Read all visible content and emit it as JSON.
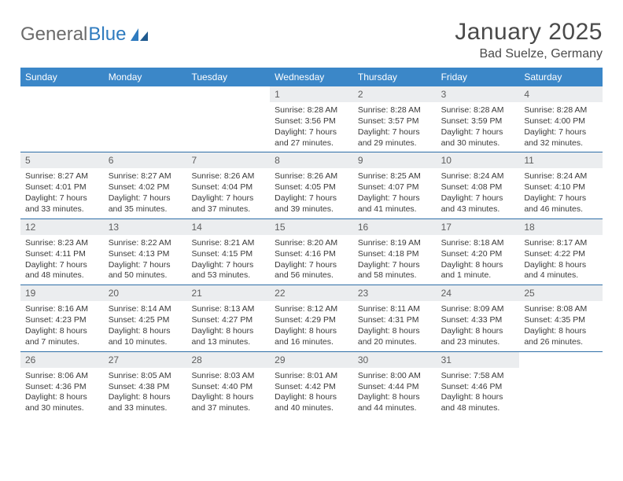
{
  "brand": {
    "part1": "General",
    "part2": "Blue"
  },
  "title": "January 2025",
  "location": "Bad Suelze, Germany",
  "colors": {
    "header_bg": "#3b87c8",
    "header_text": "#ffffff",
    "daynum_bg": "#ebedef",
    "row_border": "#2f6fa8",
    "body_text": "#3a3a3a",
    "title_text": "#4a4a4a",
    "logo_gray": "#6b6b6b",
    "logo_blue": "#2f7bbf"
  },
  "weekdays": [
    "Sunday",
    "Monday",
    "Tuesday",
    "Wednesday",
    "Thursday",
    "Friday",
    "Saturday"
  ],
  "weeks": [
    [
      {
        "n": "",
        "lines": [
          "",
          "",
          "",
          ""
        ]
      },
      {
        "n": "",
        "lines": [
          "",
          "",
          "",
          ""
        ]
      },
      {
        "n": "",
        "lines": [
          "",
          "",
          "",
          ""
        ]
      },
      {
        "n": "1",
        "lines": [
          "Sunrise: 8:28 AM",
          "Sunset: 3:56 PM",
          "Daylight: 7 hours",
          "and 27 minutes."
        ]
      },
      {
        "n": "2",
        "lines": [
          "Sunrise: 8:28 AM",
          "Sunset: 3:57 PM",
          "Daylight: 7 hours",
          "and 29 minutes."
        ]
      },
      {
        "n": "3",
        "lines": [
          "Sunrise: 8:28 AM",
          "Sunset: 3:59 PM",
          "Daylight: 7 hours",
          "and 30 minutes."
        ]
      },
      {
        "n": "4",
        "lines": [
          "Sunrise: 8:28 AM",
          "Sunset: 4:00 PM",
          "Daylight: 7 hours",
          "and 32 minutes."
        ]
      }
    ],
    [
      {
        "n": "5",
        "lines": [
          "Sunrise: 8:27 AM",
          "Sunset: 4:01 PM",
          "Daylight: 7 hours",
          "and 33 minutes."
        ]
      },
      {
        "n": "6",
        "lines": [
          "Sunrise: 8:27 AM",
          "Sunset: 4:02 PM",
          "Daylight: 7 hours",
          "and 35 minutes."
        ]
      },
      {
        "n": "7",
        "lines": [
          "Sunrise: 8:26 AM",
          "Sunset: 4:04 PM",
          "Daylight: 7 hours",
          "and 37 minutes."
        ]
      },
      {
        "n": "8",
        "lines": [
          "Sunrise: 8:26 AM",
          "Sunset: 4:05 PM",
          "Daylight: 7 hours",
          "and 39 minutes."
        ]
      },
      {
        "n": "9",
        "lines": [
          "Sunrise: 8:25 AM",
          "Sunset: 4:07 PM",
          "Daylight: 7 hours",
          "and 41 minutes."
        ]
      },
      {
        "n": "10",
        "lines": [
          "Sunrise: 8:24 AM",
          "Sunset: 4:08 PM",
          "Daylight: 7 hours",
          "and 43 minutes."
        ]
      },
      {
        "n": "11",
        "lines": [
          "Sunrise: 8:24 AM",
          "Sunset: 4:10 PM",
          "Daylight: 7 hours",
          "and 46 minutes."
        ]
      }
    ],
    [
      {
        "n": "12",
        "lines": [
          "Sunrise: 8:23 AM",
          "Sunset: 4:11 PM",
          "Daylight: 7 hours",
          "and 48 minutes."
        ]
      },
      {
        "n": "13",
        "lines": [
          "Sunrise: 8:22 AM",
          "Sunset: 4:13 PM",
          "Daylight: 7 hours",
          "and 50 minutes."
        ]
      },
      {
        "n": "14",
        "lines": [
          "Sunrise: 8:21 AM",
          "Sunset: 4:15 PM",
          "Daylight: 7 hours",
          "and 53 minutes."
        ]
      },
      {
        "n": "15",
        "lines": [
          "Sunrise: 8:20 AM",
          "Sunset: 4:16 PM",
          "Daylight: 7 hours",
          "and 56 minutes."
        ]
      },
      {
        "n": "16",
        "lines": [
          "Sunrise: 8:19 AM",
          "Sunset: 4:18 PM",
          "Daylight: 7 hours",
          "and 58 minutes."
        ]
      },
      {
        "n": "17",
        "lines": [
          "Sunrise: 8:18 AM",
          "Sunset: 4:20 PM",
          "Daylight: 8 hours",
          "and 1 minute."
        ]
      },
      {
        "n": "18",
        "lines": [
          "Sunrise: 8:17 AM",
          "Sunset: 4:22 PM",
          "Daylight: 8 hours",
          "and 4 minutes."
        ]
      }
    ],
    [
      {
        "n": "19",
        "lines": [
          "Sunrise: 8:16 AM",
          "Sunset: 4:23 PM",
          "Daylight: 8 hours",
          "and 7 minutes."
        ]
      },
      {
        "n": "20",
        "lines": [
          "Sunrise: 8:14 AM",
          "Sunset: 4:25 PM",
          "Daylight: 8 hours",
          "and 10 minutes."
        ]
      },
      {
        "n": "21",
        "lines": [
          "Sunrise: 8:13 AM",
          "Sunset: 4:27 PM",
          "Daylight: 8 hours",
          "and 13 minutes."
        ]
      },
      {
        "n": "22",
        "lines": [
          "Sunrise: 8:12 AM",
          "Sunset: 4:29 PM",
          "Daylight: 8 hours",
          "and 16 minutes."
        ]
      },
      {
        "n": "23",
        "lines": [
          "Sunrise: 8:11 AM",
          "Sunset: 4:31 PM",
          "Daylight: 8 hours",
          "and 20 minutes."
        ]
      },
      {
        "n": "24",
        "lines": [
          "Sunrise: 8:09 AM",
          "Sunset: 4:33 PM",
          "Daylight: 8 hours",
          "and 23 minutes."
        ]
      },
      {
        "n": "25",
        "lines": [
          "Sunrise: 8:08 AM",
          "Sunset: 4:35 PM",
          "Daylight: 8 hours",
          "and 26 minutes."
        ]
      }
    ],
    [
      {
        "n": "26",
        "lines": [
          "Sunrise: 8:06 AM",
          "Sunset: 4:36 PM",
          "Daylight: 8 hours",
          "and 30 minutes."
        ]
      },
      {
        "n": "27",
        "lines": [
          "Sunrise: 8:05 AM",
          "Sunset: 4:38 PM",
          "Daylight: 8 hours",
          "and 33 minutes."
        ]
      },
      {
        "n": "28",
        "lines": [
          "Sunrise: 8:03 AM",
          "Sunset: 4:40 PM",
          "Daylight: 8 hours",
          "and 37 minutes."
        ]
      },
      {
        "n": "29",
        "lines": [
          "Sunrise: 8:01 AM",
          "Sunset: 4:42 PM",
          "Daylight: 8 hours",
          "and 40 minutes."
        ]
      },
      {
        "n": "30",
        "lines": [
          "Sunrise: 8:00 AM",
          "Sunset: 4:44 PM",
          "Daylight: 8 hours",
          "and 44 minutes."
        ]
      },
      {
        "n": "31",
        "lines": [
          "Sunrise: 7:58 AM",
          "Sunset: 4:46 PM",
          "Daylight: 8 hours",
          "and 48 minutes."
        ]
      },
      {
        "n": "",
        "lines": [
          "",
          "",
          "",
          ""
        ]
      }
    ]
  ]
}
